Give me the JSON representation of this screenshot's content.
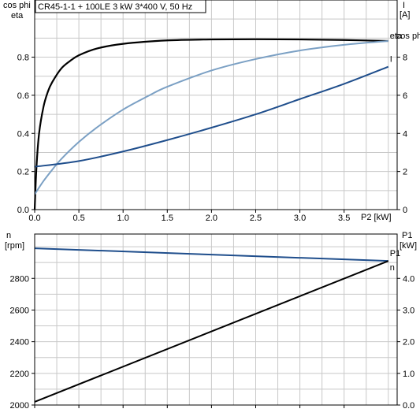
{
  "chart_data": [
    {
      "type": "line",
      "title": "CR45-1-1 + 100LE   3 kW   3*400 V, 50 Hz",
      "xlabel": "P2 [kW]",
      "ylabel_left_1": "cos phi",
      "ylabel_left_2": "eta",
      "ylabel_right": "I",
      "ylabel_right_unit": "[A]",
      "xlim": [
        0,
        4
      ],
      "ylim_left": [
        0,
        1.0
      ],
      "ylim_right": [
        0,
        10
      ],
      "x_ticks": [
        "0.0",
        "0.5",
        "1.0",
        "1.5",
        "2.0",
        "2.5",
        "3.0",
        "3.5"
      ],
      "y_left_ticks": [
        "0.0",
        "0.2",
        "0.4",
        "0.6",
        "0.8"
      ],
      "y_right_ticks": [
        "0",
        "2",
        "4",
        "6",
        "8"
      ],
      "grid": true,
      "series": [
        {
          "name": "eta",
          "axis": "left",
          "color": "#000000",
          "x": [
            0.0,
            0.02,
            0.05,
            0.1,
            0.15,
            0.2,
            0.3,
            0.4,
            0.5,
            0.7,
            1.0,
            1.5,
            2.0,
            2.5,
            3.0,
            3.5,
            4.0
          ],
          "y": [
            0.0,
            0.22,
            0.4,
            0.54,
            0.62,
            0.67,
            0.74,
            0.78,
            0.81,
            0.845,
            0.87,
            0.888,
            0.893,
            0.894,
            0.893,
            0.89,
            0.885
          ]
        },
        {
          "name": "cos phi",
          "axis": "left",
          "color": "#7ba0c4",
          "x": [
            0.0,
            0.1,
            0.2,
            0.3,
            0.5,
            0.7,
            1.0,
            1.3,
            1.5,
            2.0,
            2.5,
            3.0,
            3.5,
            4.0
          ],
          "y": [
            0.08,
            0.15,
            0.21,
            0.265,
            0.355,
            0.43,
            0.525,
            0.6,
            0.645,
            0.73,
            0.79,
            0.835,
            0.865,
            0.885
          ]
        },
        {
          "name": "I",
          "axis": "right",
          "color": "#1f4e8c",
          "x": [
            0.0,
            0.5,
            1.0,
            1.5,
            2.0,
            2.5,
            3.0,
            3.5,
            4.0
          ],
          "y": [
            2.25,
            2.55,
            3.05,
            3.65,
            4.3,
            5.0,
            5.8,
            6.6,
            7.5
          ]
        }
      ]
    },
    {
      "type": "line",
      "xlabel": "",
      "ylabel_left": "n",
      "ylabel_left_unit": "[rpm]",
      "ylabel_right": "P1",
      "ylabel_right_unit": "[kW]",
      "xlim": [
        0,
        4
      ],
      "ylim_left": [
        2000,
        3000
      ],
      "ylim_right": [
        0,
        5
      ],
      "y_left_ticks": [
        "2000",
        "2200",
        "2400",
        "2600",
        "2800"
      ],
      "y_right_ticks": [
        "0.0",
        "1.0",
        "2.0",
        "3.0",
        "4.0"
      ],
      "grid": true,
      "series": [
        {
          "name": "n",
          "axis": "left",
          "color": "#1f4e8c",
          "x": [
            0.0,
            4.0
          ],
          "y": [
            2990,
            2910
          ]
        },
        {
          "name": "P1",
          "axis": "right",
          "color": "#000000",
          "x": [
            0.0,
            4.0
          ],
          "y": [
            0.1,
            4.55
          ]
        }
      ]
    }
  ]
}
